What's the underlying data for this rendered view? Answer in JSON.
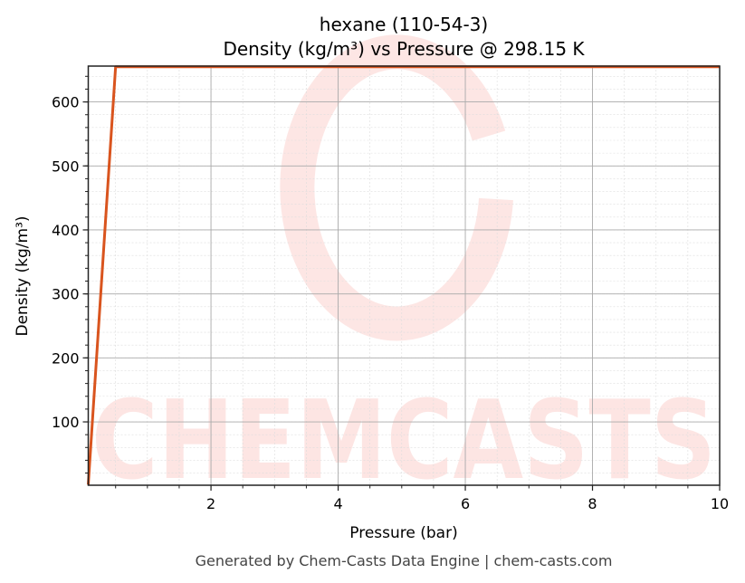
{
  "chart_data": {
    "type": "line",
    "title": "hexane (110-54-3)",
    "subtitle": "Density (kg/m³) vs Pressure @ 298.15 K",
    "xlabel": "Pressure (bar)",
    "ylabel": "Density (kg/m³)",
    "xlim": [
      0.07,
      10
    ],
    "ylim": [
      1,
      656
    ],
    "xticks": [
      2,
      4,
      6,
      8,
      10
    ],
    "yticks": [
      100,
      200,
      300,
      400,
      500,
      600
    ],
    "grid": true,
    "series": [
      {
        "color": "#d9541e",
        "x": [
          0.07,
          0.5,
          10
        ],
        "y": [
          2,
          655,
          655
        ]
      }
    ],
    "watermark": "CHEMCASTS",
    "footer": "Generated by Chem-Casts Data Engine | chem-casts.com"
  }
}
